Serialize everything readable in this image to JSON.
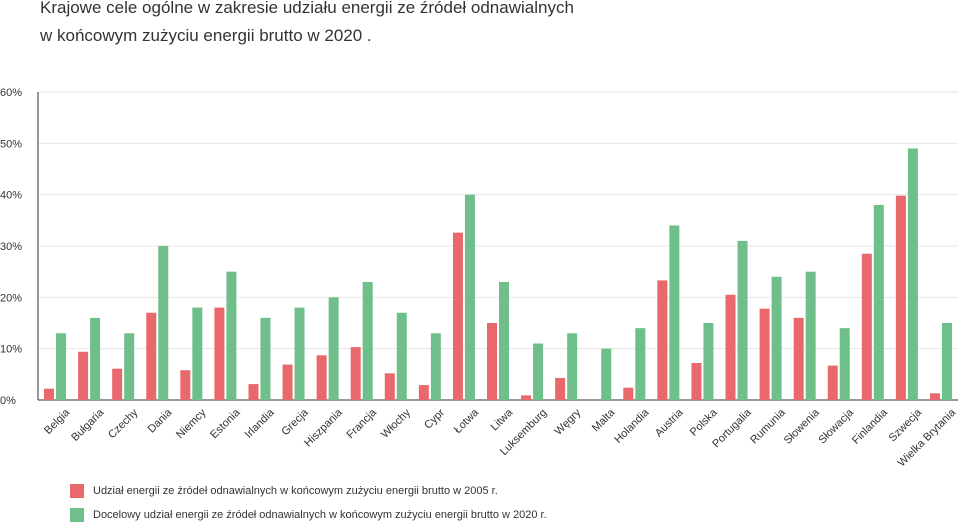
{
  "chart_data": {
    "type": "bar",
    "title": "Krajowe cele ogólne w zakresie udziału energii ze źródeł odnawialnych w końcowym zużyciu energii brutto w 2020 .",
    "title_lines": [
      "Krajowe cele ogólne w zakresie udziału energii ze źródeł odnawialnych",
      "w końcowym zużyciu energii brutto w 2020 ."
    ],
    "xlabel": "",
    "ylabel": "",
    "ylim": [
      0,
      60
    ],
    "yticks": [
      0,
      10,
      20,
      30,
      40,
      50,
      60
    ],
    "ytick_labels": [
      "0%",
      "10%",
      "20%",
      "30%",
      "40%",
      "50%",
      "60%"
    ],
    "grid": true,
    "legend_position": "bottom-left",
    "categories": [
      "Belgia",
      "Bułgaria",
      "Czechy",
      "Dania",
      "Niemcy",
      "Estonia",
      "Irlandia",
      "Grecja",
      "Hiszpania",
      "Francja",
      "Włochy",
      "Cypr",
      "Łotwa",
      "Litwa",
      "Luksemburg",
      "Węgry",
      "Malta",
      "Holandia",
      "Austria",
      "Polska",
      "Portugalia",
      "Rumunia",
      "Słowenia",
      "Słowacja",
      "Finlandia",
      "Szwecja",
      "Wielka Brytania"
    ],
    "series": [
      {
        "name": "Udział energii ze źródeł odnawialnych w końcowym zużyciu energii brutto w 2005 r.",
        "color": "#e8686c",
        "values": [
          2.2,
          9.4,
          6.1,
          17.0,
          5.8,
          18.0,
          3.1,
          6.9,
          8.7,
          10.3,
          5.2,
          2.9,
          32.6,
          15.0,
          0.9,
          4.3,
          0.0,
          2.4,
          23.3,
          7.2,
          20.5,
          17.8,
          16.0,
          6.7,
          28.5,
          39.8,
          1.3
        ]
      },
      {
        "name": "Docelowy udział energii ze źródeł odnawialnych w końcowym zużyciu energii brutto w 2020 r.",
        "color": "#6fbf8a",
        "values": [
          13,
          16,
          13,
          30,
          18,
          25,
          16,
          18,
          20,
          23,
          17,
          13,
          40,
          23,
          11,
          13,
          10,
          14,
          34,
          15,
          31,
          24,
          25,
          14,
          38,
          49,
          15
        ]
      }
    ]
  }
}
